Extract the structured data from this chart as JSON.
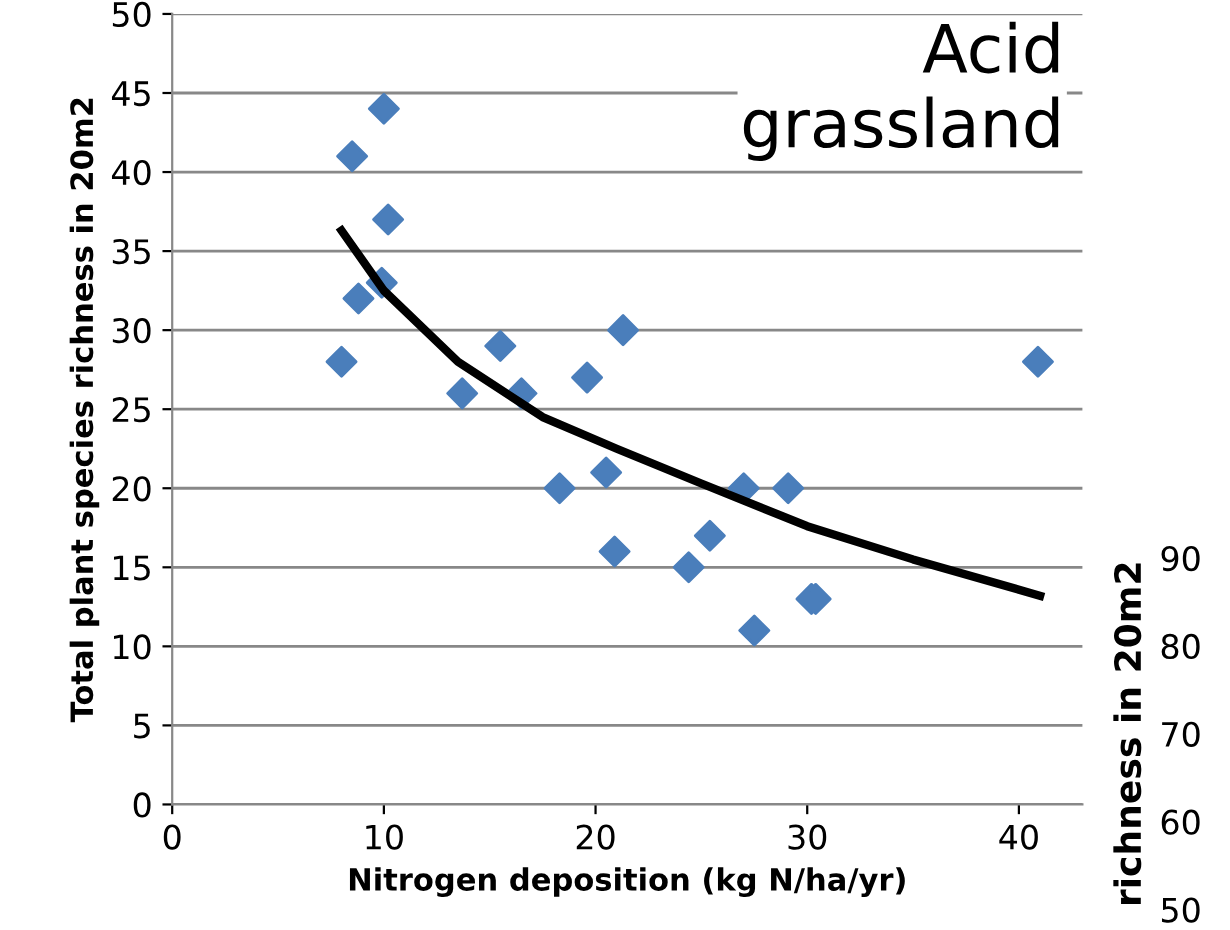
{
  "chart_data": [
    {
      "type": "scatter",
      "title": "Acid\ngrassland",
      "xlabel": "Nitrogen deposition (kg N/ha/yr)",
      "ylabel": "Total plant species richness in 20m2",
      "xlim": [
        0,
        43
      ],
      "xticks": [
        0,
        10,
        20,
        30,
        40
      ],
      "ylim": [
        0,
        50
      ],
      "yticks": [
        0,
        5,
        10,
        15,
        20,
        25,
        30,
        35,
        40,
        45,
        50
      ],
      "grid": "y",
      "legend": false,
      "series": [
        {
          "type": "scatter",
          "marker": "diamond",
          "color": "#4a7ebb",
          "x": [
            8,
            8.5,
            8.8,
            9.9,
            10,
            10.2,
            13.7,
            15.5,
            16.5,
            18.3,
            19.6,
            20.5,
            20.9,
            21.3,
            24.4,
            25.4,
            27,
            27.5,
            29.1,
            30.2,
            30.4,
            40.9
          ],
          "values": [
            28,
            41,
            32,
            33,
            44,
            37,
            26,
            29,
            26,
            20,
            27,
            21,
            16,
            30,
            15,
            17,
            20,
            11,
            20,
            13,
            13,
            28
          ]
        },
        {
          "type": "line",
          "marker": "none",
          "line_style": "solid",
          "color": "#000000",
          "x": [
            8,
            10,
            13.5,
            17.5,
            21,
            25,
            30,
            35,
            41
          ],
          "values": [
            36.3,
            32.5,
            28,
            24.5,
            22.5,
            20.3,
            17.6,
            15.5,
            13.2
          ]
        }
      ]
    },
    {
      "type": "scatter",
      "ylabel": "richness in 20m2",
      "categories": [
        null
      ],
      "values": [
        null
      ],
      "ylim": [
        50,
        90
      ],
      "yticks": [
        50,
        60,
        70,
        80,
        90
      ],
      "tick_labels": "y"
    }
  ]
}
